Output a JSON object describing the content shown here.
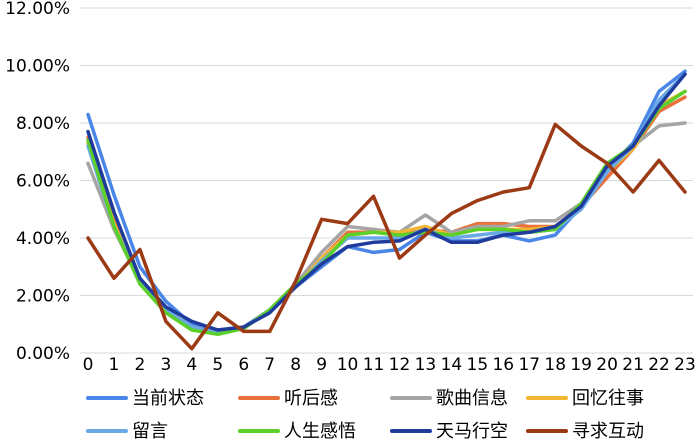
{
  "chart_data": {
    "type": "line",
    "title": "",
    "xlabel": "",
    "ylabel": "",
    "x": [
      0,
      1,
      2,
      3,
      4,
      5,
      6,
      7,
      8,
      9,
      10,
      11,
      12,
      13,
      14,
      15,
      16,
      17,
      18,
      19,
      20,
      21,
      22,
      23
    ],
    "y_ticks": [
      "0.00%",
      "2.00%",
      "4.00%",
      "6.00%",
      "8.00%",
      "10.00%",
      "12.00%"
    ],
    "ylim": [
      0,
      12
    ],
    "grid": "horizontal",
    "legend_position": "bottom",
    "series": [
      {
        "name": "当前状态",
        "color": "#4a86e8",
        "values": [
          8.3,
          5.5,
          3.0,
          1.8,
          1.0,
          0.8,
          0.9,
          1.5,
          2.3,
          3.0,
          3.7,
          3.5,
          3.6,
          4.2,
          3.9,
          3.9,
          4.1,
          3.9,
          4.1,
          5.1,
          6.4,
          7.3,
          9.1,
          9.8
        ]
      },
      {
        "name": "听后感",
        "color": "#e8703a",
        "values": [
          7.5,
          4.6,
          2.6,
          1.5,
          0.9,
          0.7,
          0.9,
          1.5,
          2.3,
          3.3,
          4.2,
          4.2,
          4.2,
          4.3,
          4.2,
          4.5,
          4.5,
          4.4,
          4.4,
          5.1,
          6.1,
          7.1,
          8.4,
          8.9
        ]
      },
      {
        "name": "歌曲信息",
        "color": "#a5a5a5",
        "values": [
          6.6,
          4.3,
          2.5,
          1.5,
          0.9,
          0.7,
          0.9,
          1.5,
          2.4,
          3.5,
          4.4,
          4.3,
          4.2,
          4.8,
          4.2,
          4.4,
          4.4,
          4.6,
          4.6,
          5.2,
          6.5,
          7.2,
          7.9,
          8.0
        ]
      },
      {
        "name": "回忆往事",
        "color": "#f2b632",
        "values": [
          7.3,
          4.5,
          2.5,
          1.5,
          0.9,
          0.7,
          0.9,
          1.5,
          2.3,
          3.3,
          4.1,
          4.2,
          4.2,
          4.4,
          4.1,
          4.3,
          4.3,
          4.3,
          4.4,
          5.1,
          6.3,
          7.1,
          8.6,
          9.1
        ]
      },
      {
        "name": "留言",
        "color": "#6aa9e8",
        "values": [
          7.2,
          4.4,
          2.5,
          1.5,
          0.9,
          0.7,
          0.9,
          1.5,
          2.3,
          3.2,
          4.0,
          4.0,
          4.0,
          4.3,
          4.0,
          4.1,
          4.2,
          4.2,
          4.3,
          5.0,
          6.3,
          7.2,
          8.8,
          9.7
        ]
      },
      {
        "name": "人生感悟",
        "color": "#5cd02a",
        "values": [
          7.4,
          4.4,
          2.4,
          1.4,
          0.8,
          0.65,
          0.85,
          1.5,
          2.4,
          3.1,
          4.1,
          4.2,
          4.1,
          4.2,
          4.1,
          4.3,
          4.3,
          4.2,
          4.3,
          5.2,
          6.6,
          7.2,
          8.5,
          9.1
        ]
      },
      {
        "name": "天马行空",
        "color": "#1f3c9c",
        "values": [
          7.7,
          4.9,
          2.6,
          1.6,
          1.1,
          0.8,
          0.9,
          1.4,
          2.3,
          3.1,
          3.7,
          3.85,
          3.9,
          4.3,
          3.85,
          3.85,
          4.1,
          4.2,
          4.4,
          5.1,
          6.5,
          7.2,
          8.6,
          9.7
        ]
      },
      {
        "name": "寻求互动",
        "color": "#9b3a14",
        "values": [
          4.0,
          2.6,
          3.6,
          1.1,
          0.15,
          1.4,
          0.75,
          0.75,
          2.5,
          4.65,
          4.5,
          5.45,
          3.3,
          4.1,
          4.85,
          5.3,
          5.6,
          5.75,
          7.95,
          7.2,
          6.6,
          5.6,
          6.7,
          5.6
        ]
      }
    ]
  }
}
